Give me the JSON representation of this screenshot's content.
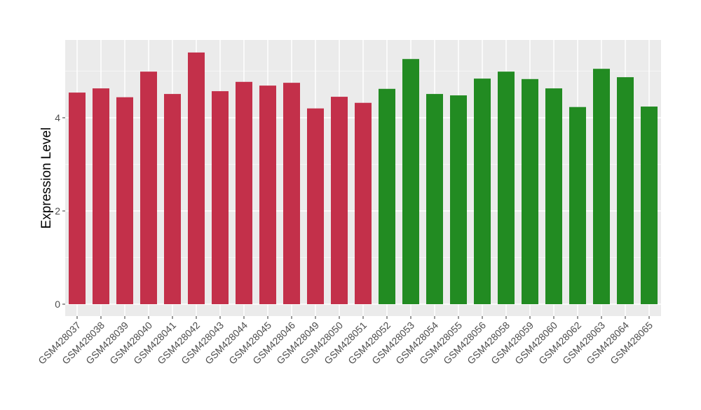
{
  "chart_data": {
    "type": "bar",
    "title": "",
    "xlabel": "",
    "ylabel": "Expression Level",
    "ylim": [
      0,
      5.7
    ],
    "yticks": [
      0,
      2,
      4
    ],
    "grid": true,
    "categories": [
      "GSM428037",
      "GSM428038",
      "GSM428039",
      "GSM428040",
      "GSM428041",
      "GSM428042",
      "GSM428043",
      "GSM428044",
      "GSM428045",
      "GSM428046",
      "GSM428049",
      "GSM428050",
      "GSM428051",
      "GSM428052",
      "GSM428053",
      "GSM428054",
      "GSM428055",
      "GSM428056",
      "GSM428058",
      "GSM428059",
      "GSM428060",
      "GSM428062",
      "GSM428063",
      "GSM428064",
      "GSM428065"
    ],
    "values": [
      4.54,
      4.63,
      4.44,
      4.99,
      4.51,
      5.4,
      4.57,
      4.77,
      4.69,
      4.75,
      4.2,
      4.45,
      4.32,
      4.62,
      5.26,
      4.51,
      4.48,
      4.84,
      4.99,
      4.83,
      4.63,
      4.23,
      5.05,
      4.87,
      4.24
    ],
    "groups": [
      0,
      0,
      0,
      0,
      0,
      0,
      0,
      0,
      0,
      0,
      0,
      0,
      0,
      1,
      1,
      1,
      1,
      1,
      1,
      1,
      1,
      1,
      1,
      1,
      1
    ],
    "group_colors": [
      "#C3304A",
      "#228B22"
    ]
  }
}
